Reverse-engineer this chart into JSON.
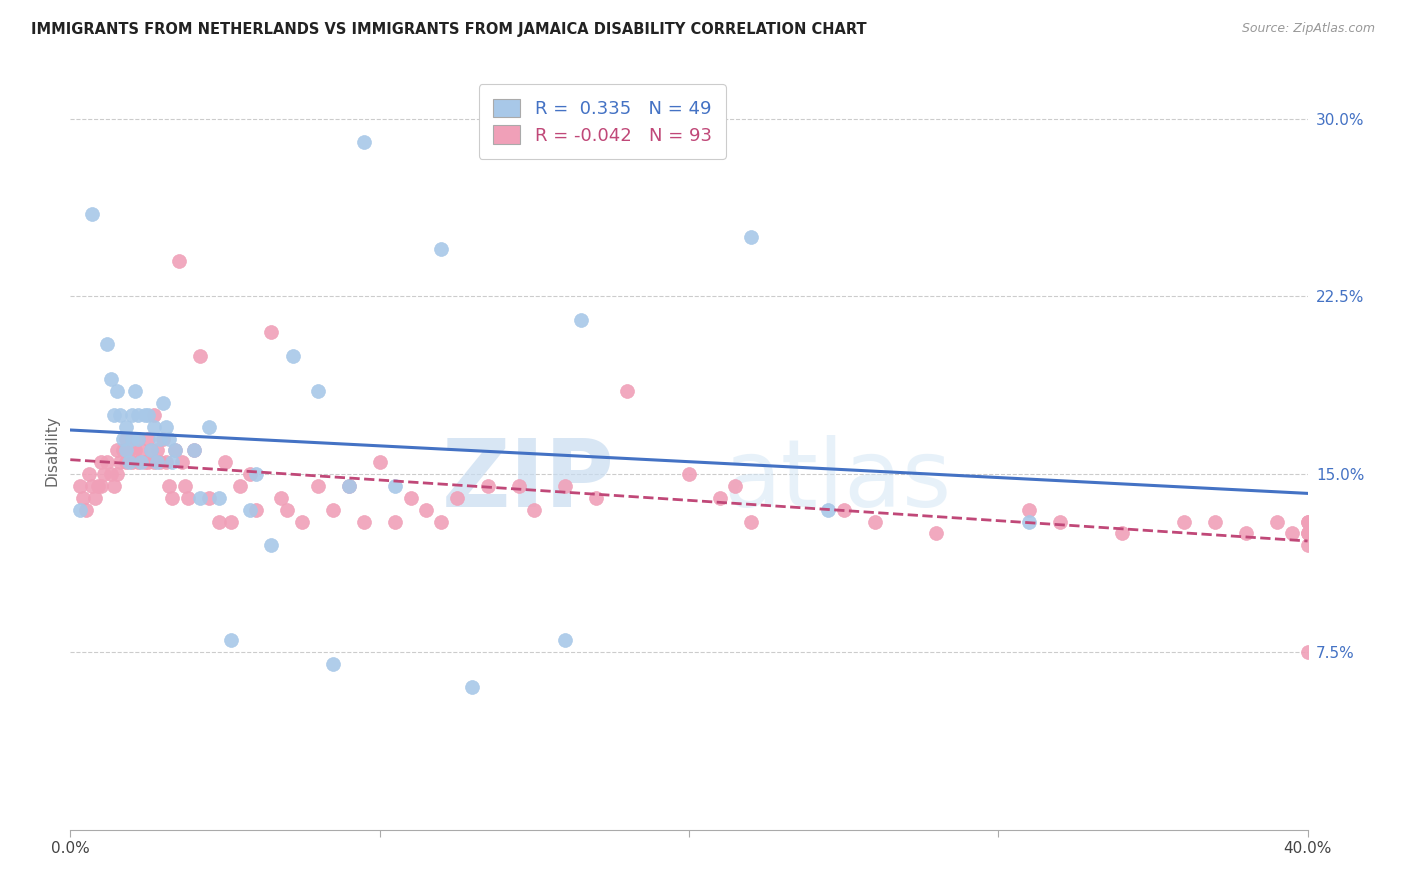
{
  "title": "IMMIGRANTS FROM NETHERLANDS VS IMMIGRANTS FROM JAMAICA DISABILITY CORRELATION CHART",
  "source": "Source: ZipAtlas.com",
  "ylabel": "Disability",
  "yticks": [
    "7.5%",
    "15.0%",
    "22.5%",
    "30.0%"
  ],
  "ytick_vals": [
    0.075,
    0.15,
    0.225,
    0.3
  ],
  "xlim": [
    0.0,
    0.4
  ],
  "ylim": [
    0.0,
    0.32
  ],
  "r1": 0.335,
  "n1": 49,
  "r2": -0.042,
  "n2": 93,
  "color_netherlands": "#A8C8E8",
  "color_jamaica": "#F0A0B8",
  "color_line_netherlands": "#4472C4",
  "color_line_jamaica": "#C04878",
  "background_color": "#FFFFFF",
  "netherlands_x": [
    0.003,
    0.007,
    0.012,
    0.013,
    0.014,
    0.015,
    0.016,
    0.017,
    0.018,
    0.018,
    0.019,
    0.02,
    0.02,
    0.021,
    0.022,
    0.022,
    0.023,
    0.024,
    0.025,
    0.026,
    0.027,
    0.028,
    0.029,
    0.03,
    0.031,
    0.032,
    0.033,
    0.034,
    0.04,
    0.042,
    0.045,
    0.048,
    0.052,
    0.058,
    0.06,
    0.065,
    0.072,
    0.08,
    0.085,
    0.09,
    0.095,
    0.105,
    0.12,
    0.13,
    0.16,
    0.165,
    0.22,
    0.245,
    0.31
  ],
  "netherlands_y": [
    0.135,
    0.26,
    0.205,
    0.19,
    0.175,
    0.185,
    0.175,
    0.165,
    0.17,
    0.16,
    0.155,
    0.175,
    0.165,
    0.185,
    0.175,
    0.165,
    0.155,
    0.175,
    0.175,
    0.16,
    0.17,
    0.155,
    0.165,
    0.18,
    0.17,
    0.165,
    0.155,
    0.16,
    0.16,
    0.14,
    0.17,
    0.14,
    0.08,
    0.135,
    0.15,
    0.12,
    0.2,
    0.185,
    0.07,
    0.145,
    0.29,
    0.145,
    0.245,
    0.06,
    0.08,
    0.215,
    0.25,
    0.135,
    0.13
  ],
  "jamaica_x": [
    0.003,
    0.004,
    0.005,
    0.006,
    0.007,
    0.008,
    0.009,
    0.01,
    0.01,
    0.011,
    0.012,
    0.013,
    0.014,
    0.015,
    0.015,
    0.016,
    0.017,
    0.018,
    0.018,
    0.019,
    0.02,
    0.02,
    0.021,
    0.022,
    0.022,
    0.023,
    0.024,
    0.025,
    0.025,
    0.026,
    0.027,
    0.027,
    0.028,
    0.029,
    0.03,
    0.031,
    0.032,
    0.033,
    0.034,
    0.035,
    0.036,
    0.037,
    0.038,
    0.04,
    0.042,
    0.045,
    0.048,
    0.05,
    0.052,
    0.055,
    0.058,
    0.06,
    0.065,
    0.068,
    0.07,
    0.075,
    0.08,
    0.085,
    0.09,
    0.095,
    0.1,
    0.105,
    0.11,
    0.115,
    0.12,
    0.125,
    0.135,
    0.145,
    0.15,
    0.16,
    0.17,
    0.18,
    0.2,
    0.21,
    0.215,
    0.22,
    0.25,
    0.26,
    0.28,
    0.31,
    0.32,
    0.34,
    0.36,
    0.37,
    0.38,
    0.39,
    0.395,
    0.4,
    0.4,
    0.4,
    0.4,
    0.4,
    0.4
  ],
  "jamaica_y": [
    0.145,
    0.14,
    0.135,
    0.15,
    0.145,
    0.14,
    0.145,
    0.155,
    0.145,
    0.15,
    0.155,
    0.15,
    0.145,
    0.16,
    0.15,
    0.155,
    0.16,
    0.165,
    0.155,
    0.16,
    0.165,
    0.155,
    0.16,
    0.165,
    0.155,
    0.16,
    0.155,
    0.165,
    0.155,
    0.16,
    0.155,
    0.175,
    0.16,
    0.155,
    0.165,
    0.155,
    0.145,
    0.14,
    0.16,
    0.24,
    0.155,
    0.145,
    0.14,
    0.16,
    0.2,
    0.14,
    0.13,
    0.155,
    0.13,
    0.145,
    0.15,
    0.135,
    0.21,
    0.14,
    0.135,
    0.13,
    0.145,
    0.135,
    0.145,
    0.13,
    0.155,
    0.13,
    0.14,
    0.135,
    0.13,
    0.14,
    0.145,
    0.145,
    0.135,
    0.145,
    0.14,
    0.185,
    0.15,
    0.14,
    0.145,
    0.13,
    0.135,
    0.13,
    0.125,
    0.135,
    0.13,
    0.125,
    0.13,
    0.13,
    0.125,
    0.13,
    0.125,
    0.13,
    0.125,
    0.12,
    0.13,
    0.125,
    0.075
  ]
}
